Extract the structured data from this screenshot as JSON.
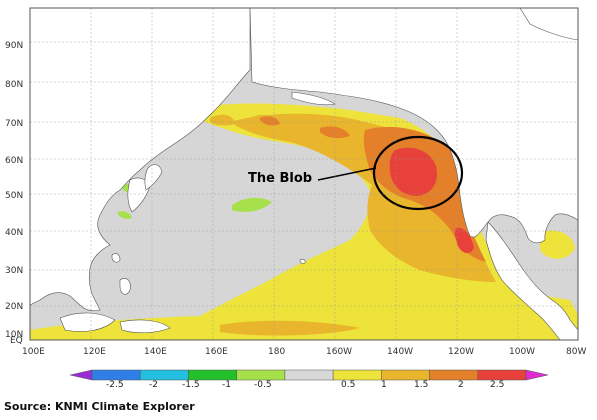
{
  "map": {
    "annotation": "The Blob",
    "lat_labels": [
      "90N",
      "80N",
      "70N",
      "60N",
      "50N",
      "40N",
      "30N",
      "20N",
      "10N",
      "EQ"
    ],
    "lon_labels": [
      "100E",
      "120E",
      "140E",
      "160E",
      "180",
      "160W",
      "140W",
      "120W",
      "100W",
      "80W"
    ]
  },
  "colorbar": {
    "labels": [
      "-2.5",
      "-2",
      "-1.5",
      "-1",
      "-0.5",
      "0.5",
      "1",
      "1.5",
      "2",
      "2.5"
    ],
    "colors": [
      "#9a2bd8",
      "#2f7fe6",
      "#22bfe0",
      "#22c02a",
      "#a6e04a",
      "#d8d8d8",
      "#ede33a",
      "#e8b52c",
      "#e4802a",
      "#e8403a",
      "#e02cd0"
    ]
  },
  "source": "Source: KNMI Climate Explorer"
}
